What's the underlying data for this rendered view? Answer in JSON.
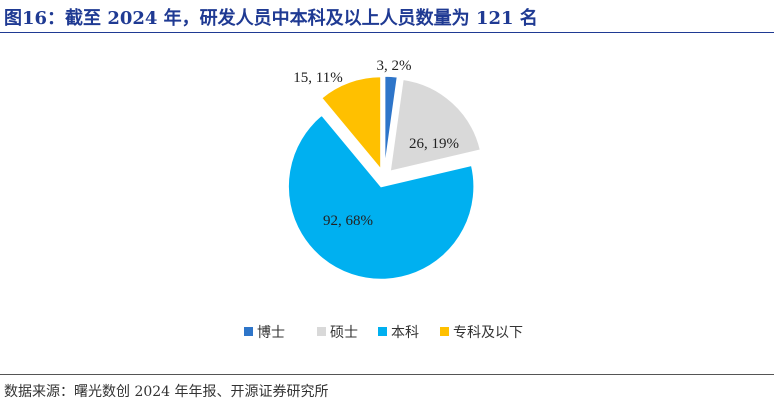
{
  "title": "图16：截至 2024 年，研发人员中本科及以上人员数量为 121 名",
  "source": "数据来源：曙光数创 2024 年年报、开源证券研究所",
  "chart_data": {
    "type": "pie",
    "title": "截至 2024 年，研发人员中本科及以上人员数量为 121 名",
    "start_angle_deg": 0,
    "direction": "clockwise",
    "exploded": true,
    "slices": [
      {
        "name": "博士",
        "value": 3,
        "percent": "2%",
        "label": "3, 2%",
        "color": "#2e75c9"
      },
      {
        "name": "硕士",
        "value": 26,
        "percent": "19%",
        "label": "26, 19%",
        "color": "#d9d9d9"
      },
      {
        "name": "本科",
        "value": 92,
        "percent": "68%",
        "label": "92, 68%",
        "color": "#00b0f0"
      },
      {
        "name": "专科及以下",
        "value": 15,
        "percent": "11%",
        "label": "15, 11%",
        "color": "#ffc000"
      }
    ],
    "legend_position": "bottom"
  }
}
